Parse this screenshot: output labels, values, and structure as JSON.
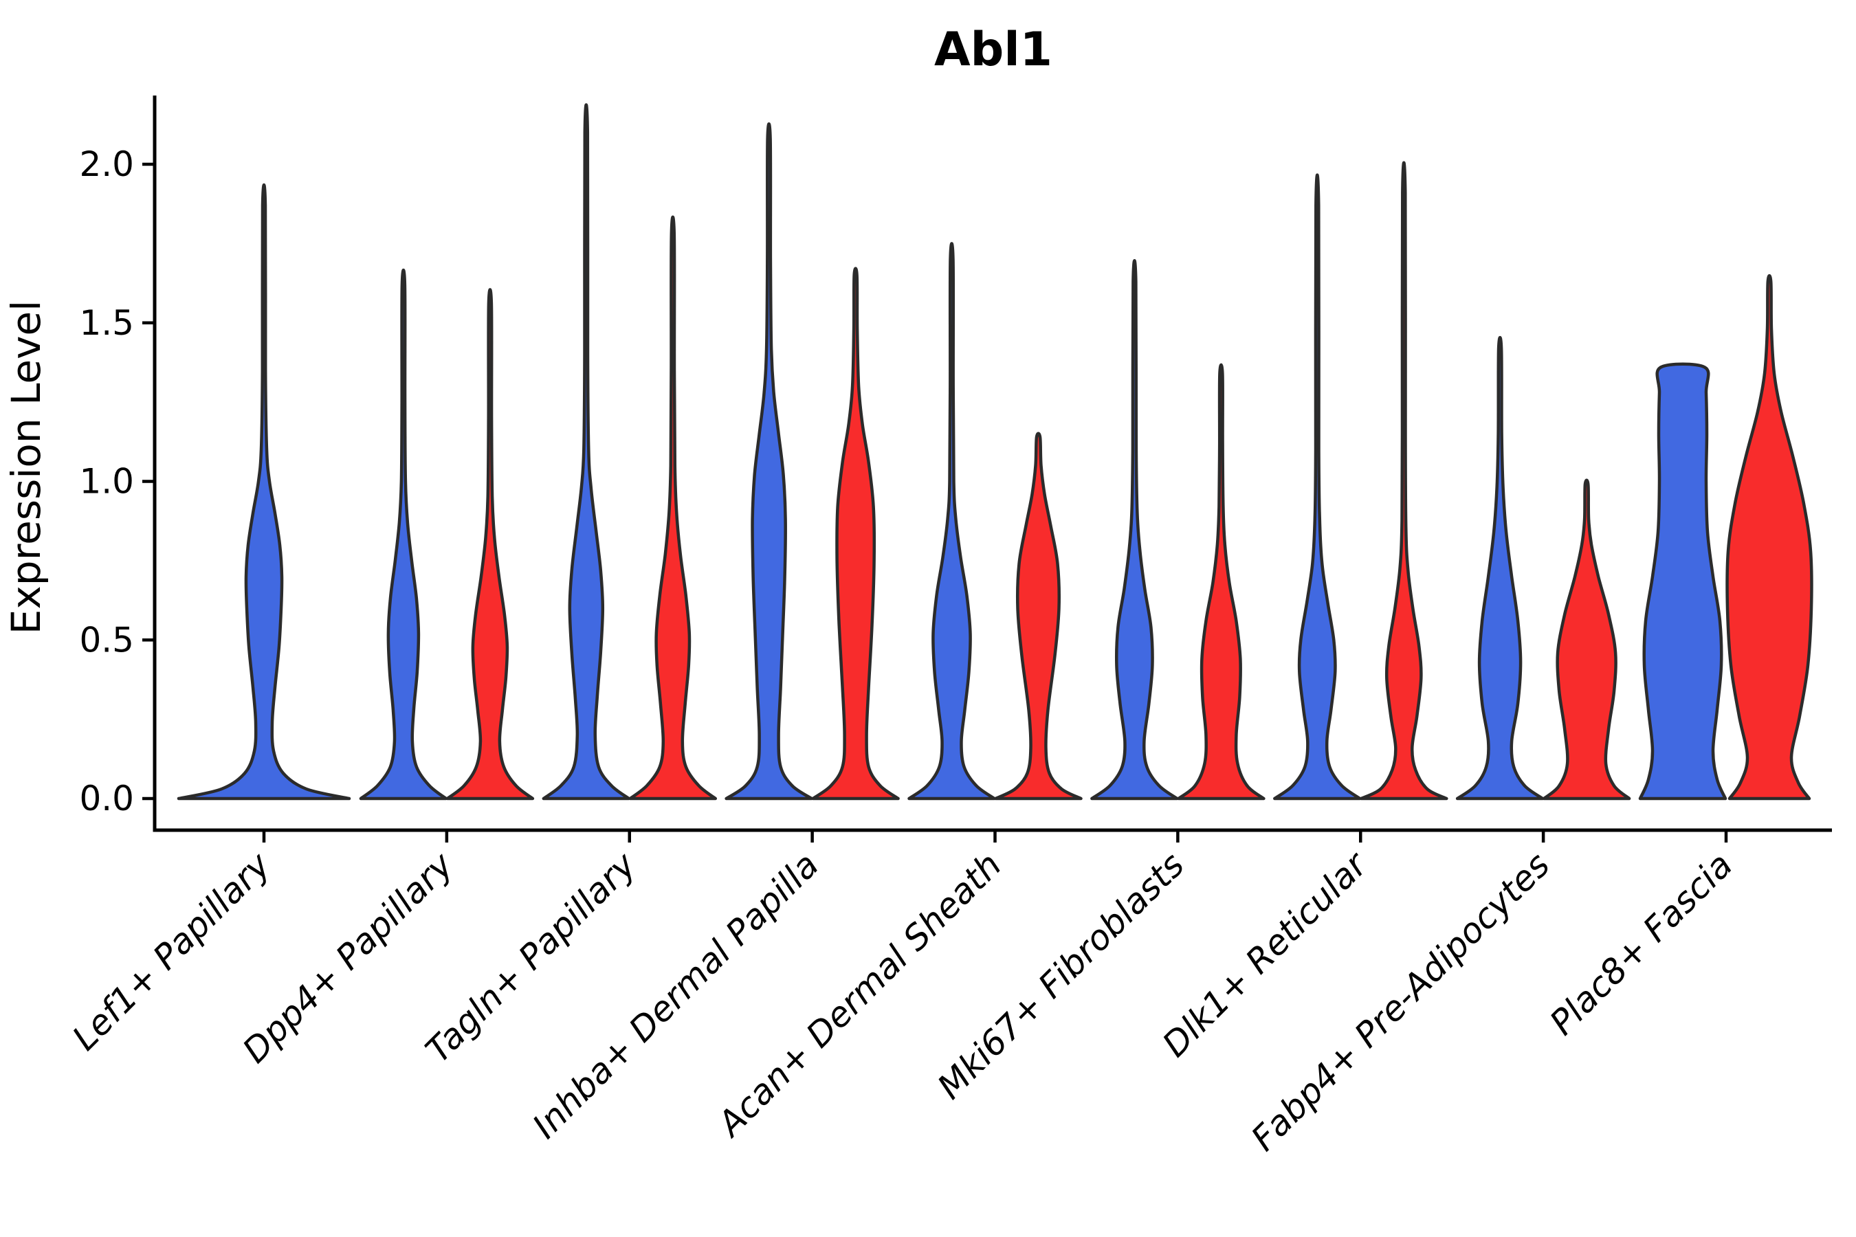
{
  "chart_data": {
    "type": "violin",
    "title": "Abl1",
    "xlabel": "",
    "ylabel": "Expression Level",
    "ytick_labels": [
      "0.0",
      "0.5",
      "1.0",
      "1.5",
      "2.0"
    ],
    "ytick_values": [
      0.0,
      0.5,
      1.0,
      1.5,
      2.0
    ],
    "ylim": [
      -0.1,
      2.22
    ],
    "grid": false,
    "legend": "none",
    "colors": {
      "blue": "#4169E1",
      "red": "#F82C2C",
      "outline": "#2b2b2b",
      "axis": "#000000"
    },
    "categories": [
      "Lef1+ Papillary",
      "Dpp4+ Papillary",
      "Tagln+ Papillary",
      "Inhba+ Dermal Papilla",
      "Acan+ Dermal Sheath",
      "Mki67+ Fibroblasts",
      "Dlk1+ Reticular",
      "Fabp4+ Pre-Adipocytes",
      "Plac8+ Fascia"
    ],
    "violins": [
      {
        "category": 0,
        "group": "blue",
        "solo": true,
        "flat_top": false,
        "max": 1.87,
        "profile": [
          [
            0,
            124
          ],
          [
            0.03,
            62
          ],
          [
            0.08,
            28
          ],
          [
            0.15,
            14
          ],
          [
            0.24,
            12
          ],
          [
            0.35,
            16
          ],
          [
            0.48,
            22
          ],
          [
            0.6,
            25
          ],
          [
            0.7,
            26
          ],
          [
            0.8,
            23
          ],
          [
            0.9,
            16
          ],
          [
            1.0,
            8
          ],
          [
            1.1,
            4
          ],
          [
            1.35,
            2.2
          ],
          [
            1.87,
            2
          ]
        ]
      },
      {
        "category": 1,
        "group": "blue",
        "solo": false,
        "flat_top": false,
        "max": 1.62,
        "profile": [
          [
            0,
            62
          ],
          [
            0.04,
            38
          ],
          [
            0.1,
            19
          ],
          [
            0.18,
            13
          ],
          [
            0.28,
            15
          ],
          [
            0.4,
            20
          ],
          [
            0.52,
            22
          ],
          [
            0.63,
            19
          ],
          [
            0.75,
            12
          ],
          [
            0.87,
            6
          ],
          [
            1.0,
            3
          ],
          [
            1.25,
            2.2
          ],
          [
            1.62,
            2
          ]
        ]
      },
      {
        "category": 1,
        "group": "red",
        "solo": false,
        "flat_top": false,
        "max": 1.56,
        "profile": [
          [
            0,
            62
          ],
          [
            0.04,
            38
          ],
          [
            0.1,
            20
          ],
          [
            0.18,
            14
          ],
          [
            0.28,
            18
          ],
          [
            0.38,
            23
          ],
          [
            0.48,
            25
          ],
          [
            0.58,
            21
          ],
          [
            0.7,
            13
          ],
          [
            0.82,
            6.5
          ],
          [
            0.95,
            3.2
          ],
          [
            1.2,
            2.2
          ],
          [
            1.56,
            2
          ]
        ]
      },
      {
        "category": 2,
        "group": "blue",
        "solo": false,
        "flat_top": false,
        "max": 2.1,
        "profile": [
          [
            0,
            62
          ],
          [
            0.04,
            37
          ],
          [
            0.1,
            18
          ],
          [
            0.2,
            13
          ],
          [
            0.32,
            16
          ],
          [
            0.46,
            21
          ],
          [
            0.6,
            24
          ],
          [
            0.72,
            21
          ],
          [
            0.85,
            14
          ],
          [
            0.98,
            7
          ],
          [
            1.1,
            3.5
          ],
          [
            1.4,
            2.2
          ],
          [
            2.1,
            2
          ]
        ]
      },
      {
        "category": 2,
        "group": "red",
        "solo": false,
        "flat_top": false,
        "max": 1.78,
        "profile": [
          [
            0,
            62
          ],
          [
            0.04,
            38
          ],
          [
            0.1,
            19
          ],
          [
            0.18,
            14
          ],
          [
            0.3,
            18
          ],
          [
            0.42,
            23
          ],
          [
            0.52,
            24
          ],
          [
            0.64,
            19
          ],
          [
            0.77,
            11
          ],
          [
            0.9,
            5.5
          ],
          [
            1.05,
            3
          ],
          [
            1.35,
            2.2
          ],
          [
            1.78,
            2
          ]
        ]
      },
      {
        "category": 3,
        "group": "blue",
        "solo": false,
        "flat_top": false,
        "max": 2.08,
        "profile": [
          [
            0,
            62
          ],
          [
            0.04,
            34
          ],
          [
            0.1,
            17
          ],
          [
            0.2,
            14
          ],
          [
            0.35,
            17
          ],
          [
            0.52,
            20
          ],
          [
            0.7,
            23
          ],
          [
            0.88,
            24
          ],
          [
            1.02,
            21
          ],
          [
            1.15,
            14
          ],
          [
            1.28,
            7
          ],
          [
            1.42,
            3.5
          ],
          [
            1.7,
            2.3
          ],
          [
            2.08,
            2
          ]
        ]
      },
      {
        "category": 3,
        "group": "red",
        "solo": false,
        "flat_top": false,
        "max": 1.65,
        "profile": [
          [
            0,
            62
          ],
          [
            0.04,
            36
          ],
          [
            0.1,
            19
          ],
          [
            0.2,
            16
          ],
          [
            0.35,
            19
          ],
          [
            0.55,
            24
          ],
          [
            0.75,
            27
          ],
          [
            0.92,
            26
          ],
          [
            1.06,
            19
          ],
          [
            1.18,
            10
          ],
          [
            1.3,
            4.5
          ],
          [
            1.48,
            2.5
          ],
          [
            1.65,
            2
          ]
        ]
      },
      {
        "category": 4,
        "group": "blue",
        "solo": false,
        "flat_top": false,
        "max": 1.7,
        "profile": [
          [
            0,
            62
          ],
          [
            0.04,
            36
          ],
          [
            0.1,
            18
          ],
          [
            0.18,
            14
          ],
          [
            0.28,
            19
          ],
          [
            0.4,
            25
          ],
          [
            0.52,
            27
          ],
          [
            0.64,
            22
          ],
          [
            0.76,
            13
          ],
          [
            0.88,
            6
          ],
          [
            1.0,
            3
          ],
          [
            1.3,
            2.2
          ],
          [
            1.7,
            2
          ]
        ]
      },
      {
        "category": 4,
        "group": "red",
        "solo": false,
        "flat_top": false,
        "max": 1.14,
        "profile": [
          [
            0,
            62
          ],
          [
            0.03,
            34
          ],
          [
            0.08,
            16
          ],
          [
            0.16,
            11
          ],
          [
            0.28,
            14
          ],
          [
            0.45,
            24
          ],
          [
            0.6,
            30
          ],
          [
            0.74,
            28
          ],
          [
            0.86,
            18
          ],
          [
            0.96,
            9
          ],
          [
            1.05,
            4
          ],
          [
            1.14,
            2.5
          ]
        ]
      },
      {
        "category": 5,
        "group": "blue",
        "solo": false,
        "flat_top": false,
        "max": 1.63,
        "profile": [
          [
            0,
            62
          ],
          [
            0.04,
            36
          ],
          [
            0.1,
            18
          ],
          [
            0.18,
            14
          ],
          [
            0.3,
            21
          ],
          [
            0.42,
            26
          ],
          [
            0.54,
            24
          ],
          [
            0.66,
            15
          ],
          [
            0.78,
            8
          ],
          [
            0.9,
            4
          ],
          [
            1.1,
            2.5
          ],
          [
            1.63,
            2
          ]
        ]
      },
      {
        "category": 5,
        "group": "red",
        "solo": false,
        "flat_top": false,
        "max": 1.34,
        "profile": [
          [
            0,
            62
          ],
          [
            0.04,
            38
          ],
          [
            0.11,
            24
          ],
          [
            0.2,
            22
          ],
          [
            0.32,
            27
          ],
          [
            0.44,
            28
          ],
          [
            0.56,
            22
          ],
          [
            0.68,
            12
          ],
          [
            0.8,
            5.5
          ],
          [
            0.92,
            3
          ],
          [
            1.12,
            2.2
          ],
          [
            1.34,
            2
          ]
        ]
      },
      {
        "category": 6,
        "group": "blue",
        "solo": false,
        "flat_top": false,
        "max": 1.87,
        "profile": [
          [
            0,
            62
          ],
          [
            0.04,
            36
          ],
          [
            0.1,
            18
          ],
          [
            0.18,
            14
          ],
          [
            0.28,
            20
          ],
          [
            0.4,
            26
          ],
          [
            0.5,
            24
          ],
          [
            0.62,
            15
          ],
          [
            0.74,
            7
          ],
          [
            0.88,
            3.5
          ],
          [
            1.1,
            2.3
          ],
          [
            1.87,
            2
          ]
        ]
      },
      {
        "category": 6,
        "group": "red",
        "solo": false,
        "flat_top": false,
        "max": 1.91,
        "profile": [
          [
            0,
            62
          ],
          [
            0.03,
            34
          ],
          [
            0.09,
            17
          ],
          [
            0.16,
            12
          ],
          [
            0.26,
            19
          ],
          [
            0.38,
            25
          ],
          [
            0.48,
            22
          ],
          [
            0.6,
            13
          ],
          [
            0.72,
            6
          ],
          [
            0.85,
            3
          ],
          [
            1.15,
            2.2
          ],
          [
            1.91,
            2
          ]
        ]
      },
      {
        "category": 7,
        "group": "blue",
        "solo": false,
        "flat_top": false,
        "max": 1.42,
        "profile": [
          [
            0,
            62
          ],
          [
            0.04,
            36
          ],
          [
            0.1,
            20
          ],
          [
            0.18,
            17
          ],
          [
            0.3,
            26
          ],
          [
            0.43,
            30
          ],
          [
            0.56,
            26
          ],
          [
            0.7,
            17
          ],
          [
            0.84,
            9
          ],
          [
            0.98,
            4.5
          ],
          [
            1.15,
            2.5
          ],
          [
            1.42,
            2
          ]
        ]
      },
      {
        "category": 7,
        "group": "red",
        "solo": false,
        "flat_top": false,
        "max": 0.99,
        "profile": [
          [
            0,
            62
          ],
          [
            0.04,
            40
          ],
          [
            0.11,
            28
          ],
          [
            0.22,
            32
          ],
          [
            0.34,
            40
          ],
          [
            0.46,
            42
          ],
          [
            0.58,
            32
          ],
          [
            0.7,
            17
          ],
          [
            0.8,
            7
          ],
          [
            0.88,
            3
          ],
          [
            0.99,
            2.2
          ]
        ]
      },
      {
        "category": 8,
        "group": "blue",
        "solo": false,
        "flat_top": true,
        "max": 1.36,
        "profile": [
          [
            0,
            62
          ],
          [
            0.06,
            50
          ],
          [
            0.15,
            44
          ],
          [
            0.28,
            50
          ],
          [
            0.42,
            56
          ],
          [
            0.56,
            54
          ],
          [
            0.7,
            44
          ],
          [
            0.84,
            36
          ],
          [
            1.0,
            34
          ],
          [
            1.15,
            35
          ],
          [
            1.28,
            34
          ],
          [
            1.36,
            32
          ]
        ]
      },
      {
        "category": 8,
        "group": "red",
        "solo": false,
        "flat_top": false,
        "max": 1.63,
        "profile": [
          [
            0,
            58
          ],
          [
            0.05,
            42
          ],
          [
            0.13,
            32
          ],
          [
            0.26,
            44
          ],
          [
            0.42,
            56
          ],
          [
            0.6,
            61
          ],
          [
            0.78,
            60
          ],
          [
            0.93,
            50
          ],
          [
            1.08,
            34
          ],
          [
            1.22,
            17
          ],
          [
            1.34,
            7
          ],
          [
            1.48,
            3
          ],
          [
            1.63,
            2.2
          ]
        ]
      }
    ]
  }
}
